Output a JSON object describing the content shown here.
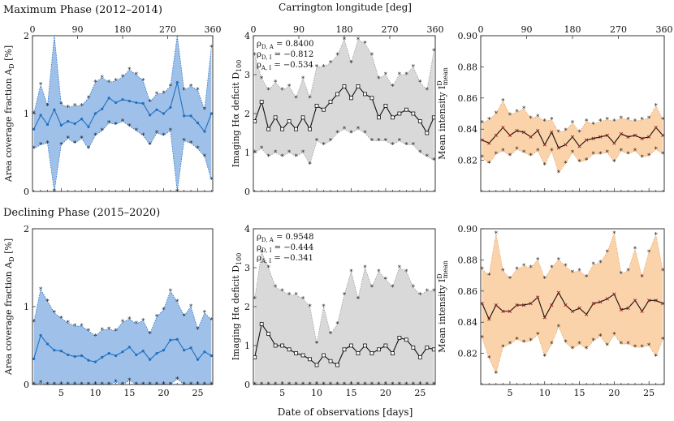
{
  "figure": {
    "top_row_title": "Maximum Phase (2012–2014)",
    "bottom_row_title": "Declining Phase (2015–2020)",
    "top_axis_label": "Carrington longitude [deg]",
    "bottom_axis_label": "Date of observations [days]"
  },
  "colors": {
    "blue_fill": "#9fc0e8",
    "blue_line": "#1f6fc0",
    "gray_fill": "#d9d9d9",
    "gray_line": "#111111",
    "orange_fill": "#fbd3aa",
    "orange_edge": "#e8a060",
    "red_line": "#8b1a1a"
  },
  "chart_data": [
    {
      "id": "max_area",
      "type": "area",
      "ylabel": "Area coverage fraction A",
      "ylabel_sub": "D",
      "ylabel_tail": " [%]",
      "ylim": [
        0,
        2
      ],
      "yticks": [
        0,
        1,
        2
      ],
      "xlim": [
        0.8,
        27.2
      ],
      "xticks": [
        5,
        10,
        15,
        20,
        25
      ],
      "top_ticks": [
        0,
        90,
        180,
        270,
        360
      ],
      "style": "blue",
      "x": [
        1,
        2,
        3,
        4,
        5,
        6,
        7,
        8,
        9,
        10,
        11,
        12,
        13,
        14,
        15,
        16,
        17,
        18,
        19,
        20,
        21,
        22,
        23,
        24,
        25,
        26,
        27
      ],
      "mean": [
        0.8,
        0.98,
        0.86,
        1.05,
        0.85,
        0.9,
        0.87,
        0.93,
        0.83,
        1.0,
        1.06,
        1.2,
        1.14,
        1.18,
        1.16,
        1.14,
        1.13,
        0.98,
        1.05,
        1.0,
        1.08,
        1.4,
        0.97,
        0.97,
        0.88,
        0.77,
        1.0
      ],
      "upper": [
        1.0,
        1.37,
        1.1,
        2.05,
        1.12,
        1.08,
        1.1,
        1.1,
        1.2,
        1.4,
        1.46,
        1.4,
        1.42,
        1.47,
        1.56,
        1.5,
        1.42,
        1.15,
        1.25,
        1.26,
        1.35,
        2.15,
        1.3,
        1.35,
        1.3,
        1.05,
        1.85
      ],
      "lower": [
        0.55,
        0.6,
        0.62,
        0.0,
        0.6,
        0.68,
        0.62,
        0.68,
        0.55,
        0.72,
        0.78,
        0.88,
        0.86,
        0.9,
        0.84,
        0.78,
        0.72,
        0.6,
        0.75,
        0.72,
        0.78,
        0.0,
        0.65,
        0.62,
        0.55,
        0.45,
        0.15
      ]
    },
    {
      "id": "max_halpha",
      "type": "area",
      "ylabel": "Imaging Hα deficit D",
      "ylabel_sub": "100",
      "ylabel_tail": "",
      "ylim": [
        0,
        4
      ],
      "yticks": [
        0,
        1,
        2,
        3,
        4
      ],
      "xlim": [
        0.8,
        27.2
      ],
      "xticks": [
        5,
        10,
        15,
        20,
        25
      ],
      "top_ticks": [
        0,
        90,
        180,
        270,
        360
      ],
      "style": "gray",
      "x": [
        1,
        2,
        3,
        4,
        5,
        6,
        7,
        8,
        9,
        10,
        11,
        12,
        13,
        14,
        15,
        16,
        17,
        18,
        19,
        20,
        21,
        22,
        23,
        24,
        25,
        26,
        27
      ],
      "mean": [
        1.8,
        2.3,
        1.6,
        1.9,
        1.6,
        1.8,
        1.6,
        1.9,
        1.6,
        2.2,
        2.1,
        2.3,
        2.5,
        2.7,
        2.4,
        2.7,
        2.5,
        2.4,
        1.9,
        2.2,
        1.9,
        2.0,
        2.1,
        2.0,
        1.8,
        1.5,
        1.9
      ],
      "upper": [
        3.5,
        2.9,
        2.6,
        2.8,
        2.6,
        2.7,
        2.4,
        2.9,
        2.4,
        3.2,
        3.2,
        3.3,
        3.5,
        3.9,
        3.3,
        3.9,
        3.8,
        3.5,
        2.9,
        3.0,
        2.7,
        3.0,
        3.0,
        3.2,
        2.8,
        2.6,
        3.6
      ],
      "lower": [
        1.0,
        1.1,
        0.9,
        1.0,
        0.9,
        1.0,
        0.9,
        1.0,
        0.7,
        1.3,
        1.2,
        1.3,
        1.5,
        1.6,
        1.5,
        1.6,
        1.5,
        1.3,
        1.3,
        1.3,
        1.2,
        1.3,
        1.2,
        1.2,
        1.0,
        0.9,
        0.8
      ],
      "annotations": [
        {
          "label": "ρ",
          "sub": "D, A",
          "value": " = 0.8400"
        },
        {
          "label": "ρ",
          "sub": "D, I",
          "value": " = −0.812"
        },
        {
          "label": "ρ",
          "sub": "A, I",
          "value": " = −0.534"
        }
      ]
    },
    {
      "id": "max_intensity",
      "type": "area",
      "ylabel": "Mean intensity I",
      "ylabel_sub": "mean",
      "ylabel_sup": "D",
      "ylabel_tail": "",
      "ylim": [
        0.8,
        0.9
      ],
      "yticks": [
        0.82,
        0.84,
        0.86,
        0.88,
        0.9
      ],
      "ytick_labels": [
        "0.82",
        "0.84",
        "0.86",
        "0.88",
        "0.90"
      ],
      "xlim": [
        0.8,
        27.2
      ],
      "xticks": [
        5,
        10,
        15,
        20,
        25
      ],
      "top_ticks": [
        0,
        90,
        180,
        270,
        360
      ],
      "style": "orange",
      "x": [
        1,
        2,
        3,
        4,
        5,
        6,
        7,
        8,
        9,
        10,
        11,
        12,
        13,
        14,
        15,
        16,
        17,
        18,
        19,
        20,
        21,
        22,
        23,
        24,
        25,
        26,
        27
      ],
      "mean": [
        0.833,
        0.831,
        0.836,
        0.841,
        0.836,
        0.839,
        0.838,
        0.835,
        0.839,
        0.83,
        0.838,
        0.828,
        0.83,
        0.835,
        0.829,
        0.833,
        0.834,
        0.835,
        0.836,
        0.831,
        0.837,
        0.835,
        0.836,
        0.834,
        0.835,
        0.841,
        0.836
      ],
      "upper": [
        0.844,
        0.846,
        0.85,
        0.858,
        0.849,
        0.851,
        0.853,
        0.847,
        0.848,
        0.845,
        0.846,
        0.838,
        0.839,
        0.844,
        0.838,
        0.845,
        0.843,
        0.845,
        0.846,
        0.845,
        0.847,
        0.846,
        0.845,
        0.846,
        0.847,
        0.855,
        0.846
      ],
      "lower": [
        0.822,
        0.818,
        0.824,
        0.826,
        0.823,
        0.827,
        0.825,
        0.823,
        0.826,
        0.817,
        0.826,
        0.812,
        0.818,
        0.825,
        0.819,
        0.82,
        0.824,
        0.824,
        0.825,
        0.819,
        0.826,
        0.824,
        0.826,
        0.822,
        0.823,
        0.827,
        0.824
      ]
    },
    {
      "id": "dec_area",
      "type": "area",
      "ylabel": "Area coverage fraction A",
      "ylabel_sub": "D",
      "ylabel_tail": " [%]",
      "ylim": [
        0,
        2
      ],
      "yticks": [
        0,
        1,
        2
      ],
      "xlim": [
        0.8,
        27.2
      ],
      "xticks": [
        5,
        10,
        15,
        20,
        25
      ],
      "style": "blue",
      "x": [
        1,
        2,
        3,
        4,
        5,
        6,
        7,
        8,
        9,
        10,
        11,
        12,
        13,
        14,
        15,
        16,
        17,
        18,
        19,
        20,
        21,
        22,
        23,
        24,
        25,
        26,
        27
      ],
      "mean": [
        0.33,
        0.63,
        0.52,
        0.44,
        0.43,
        0.38,
        0.36,
        0.37,
        0.31,
        0.29,
        0.35,
        0.4,
        0.37,
        0.42,
        0.48,
        0.38,
        0.43,
        0.32,
        0.4,
        0.44,
        0.57,
        0.58,
        0.44,
        0.47,
        0.32,
        0.42,
        0.37
      ],
      "upper": [
        0.8,
        1.22,
        1.07,
        0.92,
        0.85,
        0.79,
        0.75,
        0.75,
        0.69,
        0.62,
        0.7,
        0.71,
        0.69,
        0.8,
        0.84,
        0.78,
        0.82,
        0.65,
        0.87,
        0.96,
        1.2,
        1.06,
        0.88,
        1.0,
        0.71,
        0.92,
        0.83
      ],
      "lower": [
        0.0,
        0.02,
        0.0,
        0.0,
        0.0,
        0.0,
        0.0,
        0.0,
        0.0,
        0.0,
        0.0,
        0.0,
        0.03,
        0.0,
        0.05,
        0.0,
        0.0,
        0.0,
        0.0,
        0.0,
        0.0,
        0.07,
        0.0,
        0.0,
        0.0,
        0.0,
        0.0
      ]
    },
    {
      "id": "dec_halpha",
      "type": "area",
      "ylabel": "Imaging Hα deficit D",
      "ylabel_sub": "100",
      "ylabel_tail": "",
      "ylim": [
        0,
        4
      ],
      "yticks": [
        0,
        1,
        2,
        3,
        4
      ],
      "xlim": [
        0.8,
        27.2
      ],
      "xticks": [
        5,
        10,
        15,
        20,
        25
      ],
      "style": "gray",
      "x": [
        1,
        2,
        3,
        4,
        5,
        6,
        7,
        8,
        9,
        10,
        11,
        12,
        13,
        14,
        15,
        16,
        17,
        18,
        19,
        20,
        21,
        22,
        23,
        24,
        25,
        26,
        27
      ],
      "mean": [
        0.7,
        1.55,
        1.3,
        1.0,
        1.0,
        0.9,
        0.8,
        0.75,
        0.65,
        0.5,
        0.75,
        0.6,
        0.5,
        0.9,
        1.0,
        0.8,
        1.0,
        0.8,
        0.9,
        1.0,
        0.8,
        1.2,
        1.15,
        0.95,
        0.7,
        0.95,
        0.9
      ],
      "upper": [
        2.2,
        3.4,
        3.0,
        2.5,
        2.4,
        2.3,
        2.3,
        2.2,
        2.0,
        1.05,
        2.0,
        1.3,
        1.55,
        2.3,
        2.9,
        2.2,
        3.0,
        2.5,
        2.9,
        2.7,
        2.5,
        3.0,
        2.9,
        2.5,
        2.3,
        2.4,
        2.4
      ],
      "lower": [
        0,
        0,
        0,
        0,
        0,
        0,
        0,
        0,
        0,
        0,
        0,
        0,
        0,
        0,
        0,
        0,
        0,
        0,
        0,
        0,
        0,
        0,
        0,
        0,
        0,
        0,
        0
      ],
      "annotations": [
        {
          "label": "ρ",
          "sub": "D, A",
          "value": " = 0.9548"
        },
        {
          "label": "ρ",
          "sub": "D, I",
          "value": " = −0.444"
        },
        {
          "label": "ρ",
          "sub": "A, I",
          "value": " = −0.341"
        }
      ]
    },
    {
      "id": "dec_intensity",
      "type": "area",
      "ylabel": "Mean intensity I",
      "ylabel_sub": "mean",
      "ylabel_sup": "D",
      "ylabel_tail": "",
      "ylim": [
        0.8,
        0.9
      ],
      "yticks": [
        0.82,
        0.84,
        0.86,
        0.88,
        0.9
      ],
      "ytick_labels": [
        "0.82",
        "0.84",
        "0.86",
        "0.88",
        "0.90"
      ],
      "xlim": [
        0.8,
        27.2
      ],
      "xticks": [
        5,
        10,
        15,
        20,
        25
      ],
      "style": "orange",
      "x": [
        1,
        2,
        3,
        4,
        5,
        6,
        7,
        8,
        9,
        10,
        11,
        12,
        13,
        14,
        15,
        16,
        17,
        18,
        19,
        20,
        21,
        22,
        23,
        24,
        25,
        26,
        27
      ],
      "mean": [
        0.852,
        0.842,
        0.851,
        0.847,
        0.847,
        0.851,
        0.851,
        0.852,
        0.856,
        0.843,
        0.851,
        0.859,
        0.851,
        0.847,
        0.849,
        0.845,
        0.852,
        0.853,
        0.855,
        0.858,
        0.848,
        0.849,
        0.854,
        0.847,
        0.854,
        0.854,
        0.852
      ],
      "upper": [
        0.874,
        0.87,
        0.897,
        0.873,
        0.868,
        0.874,
        0.876,
        0.875,
        0.88,
        0.868,
        0.875,
        0.88,
        0.876,
        0.872,
        0.873,
        0.869,
        0.877,
        0.878,
        0.885,
        0.897,
        0.871,
        0.873,
        0.887,
        0.869,
        0.885,
        0.896,
        0.873
      ],
      "lower": [
        0.83,
        0.817,
        0.807,
        0.824,
        0.826,
        0.829,
        0.827,
        0.828,
        0.832,
        0.818,
        0.826,
        0.837,
        0.827,
        0.823,
        0.826,
        0.823,
        0.828,
        0.831,
        0.825,
        0.832,
        0.826,
        0.826,
        0.824,
        0.824,
        0.825,
        0.818,
        0.829
      ]
    }
  ]
}
